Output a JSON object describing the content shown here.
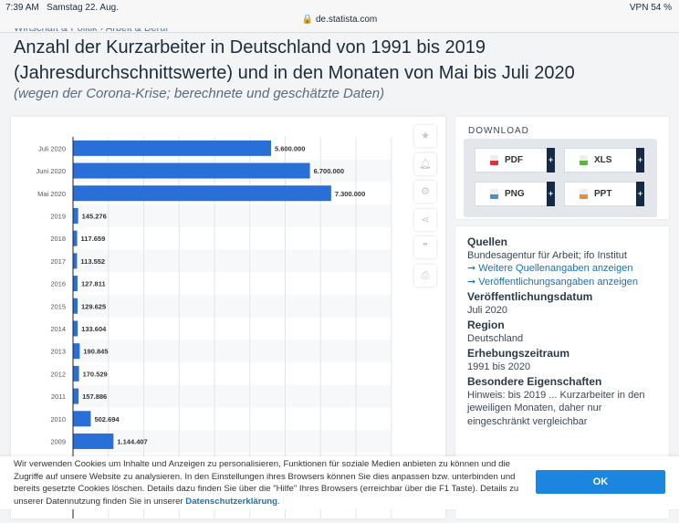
{
  "status_bar": {
    "time": "7:39 AM",
    "date": "Samstag 22. Aug.",
    "right": "VPN 54 %",
    "url": "de.statista.com"
  },
  "breadcrumb": "Wirtschaft & Politik › Arbeit & Beruf",
  "title": "Anzahl der Kurzarbeiter in Deutschland von 1991 bis 2019 (Jahresdurchschnittswerte) und in den Monaten von Mai bis Juli 2020",
  "subtitle": "(wegen der Corona-Krise; berechnete und geschätzte Daten)",
  "chart_data": {
    "type": "bar",
    "orientation": "horizontal",
    "categories": [
      "Juli 2020",
      "Juni 2020",
      "Mai 2020",
      "2019",
      "2018",
      "2017",
      "2016",
      "2015",
      "2014",
      "2013",
      "2012",
      "2011",
      "2010",
      "2009"
    ],
    "values": [
      5600000,
      6700000,
      7300000,
      145276,
      117659,
      113552,
      127811,
      129625,
      133604,
      190845,
      170529,
      157886,
      502694,
      1144407
    ],
    "labels": [
      "5.600.000",
      "6.700.000",
      "7.300.000",
      "145.276",
      "117.659",
      "113.552",
      "127.811",
      "129.625",
      "133.604",
      "190.845",
      "170.529",
      "157.886",
      "502.694",
      "1.144.407"
    ],
    "xlim": [
      0,
      9000000
    ],
    "grid": true,
    "color": "#2870d8"
  },
  "tools": [
    "star-icon",
    "bell-icon",
    "gear-icon",
    "share-icon",
    "quote-icon",
    "print-icon"
  ],
  "download": {
    "title": "DOWNLOAD",
    "buttons": [
      {
        "label": "PDF",
        "color": "#d9343a"
      },
      {
        "label": "XLS",
        "color": "#5cb33f"
      },
      {
        "label": "PNG",
        "color": "#4a8fd1"
      },
      {
        "label": "PPT",
        "color": "#ee8a2f"
      }
    ],
    "plus": "+"
  },
  "info": {
    "sources_title": "Quellen",
    "sources": "Bundesagentur für Arbeit; ifo Institut",
    "link1": "➞ Weitere Quellenangaben anzeigen",
    "link2": "➞ Veröffentlichungsangaben anzeigen",
    "pub_title": "Veröffentlichungsdatum",
    "pub": "Juli 2020",
    "region_title": "Region",
    "region": "Deutschland",
    "period_title": "Erhebungszeitraum",
    "period": "1991 bis 2020",
    "special_title": "Besondere Eigenschaften",
    "special": "Hinweis: bis 2019 ... Kurzarbeiter in den jeweiligen Monaten, daher nur eingeschränkt vergleichbar"
  },
  "cookie": {
    "text": "Wir verwenden Cookies um Inhalte und Anzeigen zu personalisieren, Funktionen für soziale Medien anbieten zu können und die Zugriffe auf unsere Website zu analysieren. In den Einstellungen ihres Browsers können Sie dies anpassen bzw. unterbinden und bereits gesetzte Cookies löschen. Details dazu finden Sie über die \"Hilfe\" Ihres Browsers (erreichbar über die F1 Taste). Details zu unserer Datennutzung finden Sie in unserer ",
    "link": "Datenschutzerklärung",
    "end": ".",
    "ok": "OK"
  }
}
